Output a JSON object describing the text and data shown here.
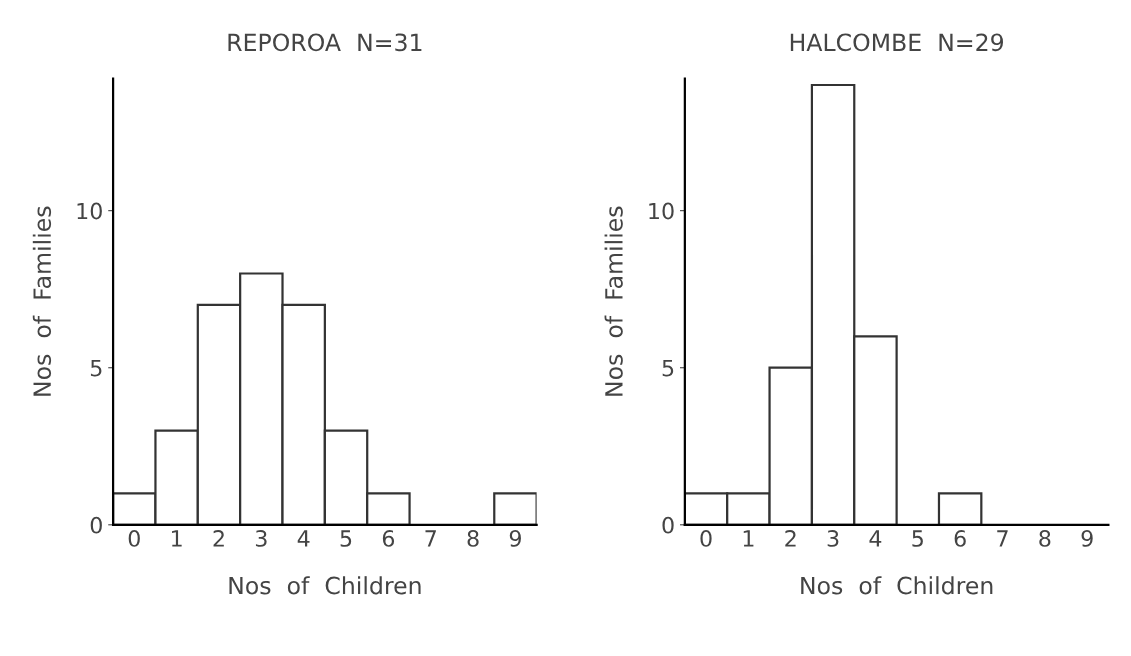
{
  "chart_data": [
    {
      "type": "bar",
      "title": "REPOROA  N=31",
      "xlabel": "Nos  of  Children",
      "ylabel": "Nos  of  Families",
      "categories": [
        "0",
        "1",
        "2",
        "3",
        "4",
        "5",
        "6",
        "7",
        "8",
        "9"
      ],
      "values": [
        1,
        3,
        7,
        8,
        7,
        3,
        1,
        0,
        0,
        1
      ],
      "color": "#ffffff",
      "ylim": [
        0,
        14.2
      ],
      "yticks": [
        0,
        5,
        10
      ],
      "grid": false,
      "legend": false
    },
    {
      "type": "bar",
      "title": "HALCOMBE  N=29",
      "xlabel": "Nos  of  Children",
      "ylabel": "Nos  of  Families",
      "categories": [
        "0",
        "1",
        "2",
        "3",
        "4",
        "5",
        "6",
        "7",
        "8",
        "9"
      ],
      "values": [
        1,
        1,
        5,
        14,
        6,
        0,
        1,
        0,
        0,
        0
      ],
      "color": "#ffffff",
      "ylim": [
        0,
        14.2
      ],
      "yticks": [
        0,
        5,
        10
      ],
      "grid": false,
      "legend": false
    }
  ]
}
